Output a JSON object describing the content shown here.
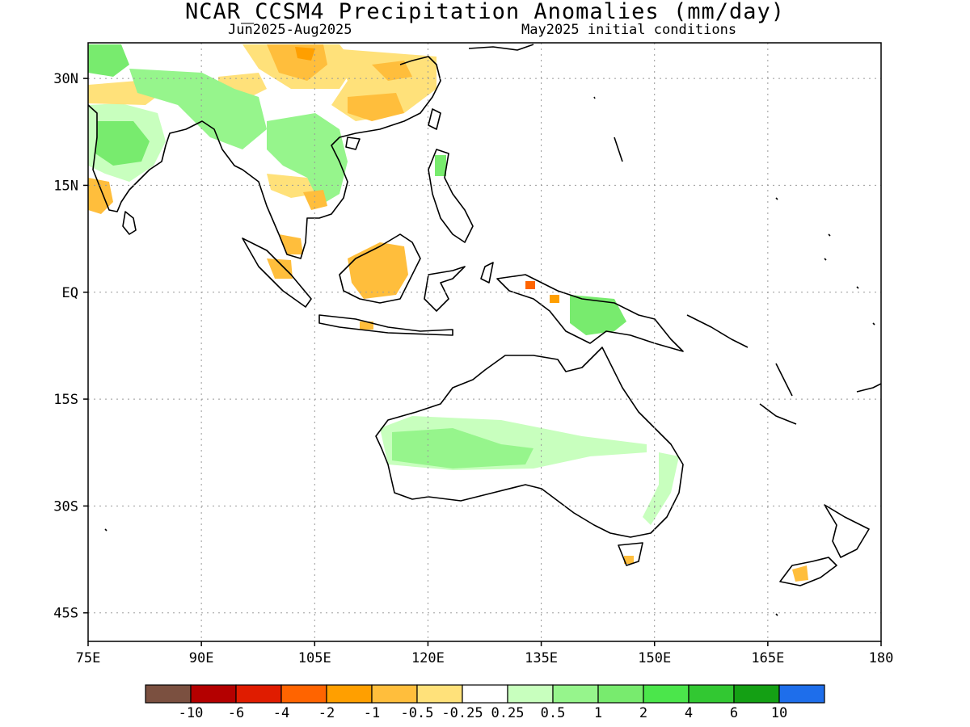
{
  "title": "NCAR_CCSM4 Precipitation Anomalies (mm/day)",
  "subtitle_left": "Jun2025-Aug2025",
  "subtitle_right": "May2025 initial conditions",
  "map": {
    "lon_range": [
      75,
      180
    ],
    "lat_range": [
      -49,
      35
    ],
    "grid": "dotted",
    "lon_ticks": [
      {
        "value": 75,
        "label": "75E"
      },
      {
        "value": 90,
        "label": "90E"
      },
      {
        "value": 105,
        "label": "105E"
      },
      {
        "value": 120,
        "label": "120E"
      },
      {
        "value": 135,
        "label": "135E"
      },
      {
        "value": 150,
        "label": "150E"
      },
      {
        "value": 165,
        "label": "165E"
      },
      {
        "value": 180,
        "label": "180"
      }
    ],
    "lat_ticks": [
      {
        "value": 30,
        "label": "30N"
      },
      {
        "value": 15,
        "label": "15N"
      },
      {
        "value": 0,
        "label": "EQ"
      },
      {
        "value": -15,
        "label": "15S"
      },
      {
        "value": -30,
        "label": "30S"
      },
      {
        "value": -45,
        "label": "45S"
      }
    ]
  },
  "colorbar": {
    "colors": [
      "#7b5040",
      "#b40000",
      "#e01c00",
      "#ff6400",
      "#ff9f00",
      "#ffbe3c",
      "#ffe17a",
      "#ffffff",
      "#c8ffbe",
      "#96f58c",
      "#78eb6e",
      "#4be64b",
      "#32c832",
      "#14a014",
      "#1e6eeb"
    ],
    "labels": [
      "-10",
      "-6",
      "-4",
      "-2",
      "-1",
      "-0.5",
      "-0.25",
      "0.25",
      "0.5",
      "1",
      "2",
      "4",
      "6",
      "10"
    ]
  }
}
